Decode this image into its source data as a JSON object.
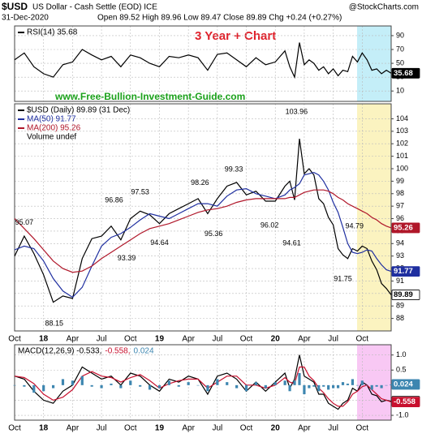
{
  "header": {
    "symbol": "$USD",
    "name": "US Dollar - Cash Settle (EOD) ICE",
    "brand": "@StockCharts.com",
    "date": "31-Dec-2020",
    "quote": "Open 89.52 High 89.96 Low 89.47 Close 89.89 Chg +0.24 (+0.27%)",
    "banner": "3 Year + Chart",
    "website": "www.Free-Bullion-Investment-Guide.com"
  },
  "chart_data": [
    {
      "type": "line",
      "x": [
        0,
        1,
        2,
        3,
        4,
        5,
        6,
        7,
        8,
        9,
        10,
        11,
        12,
        13,
        14,
        15,
        16,
        17,
        18,
        19,
        20,
        21,
        22,
        23,
        24,
        25,
        26,
        27,
        28,
        28.5,
        29,
        29.5,
        30,
        30.5,
        31,
        31.5,
        32,
        32.5,
        33,
        33.5,
        34,
        34.5,
        35,
        35.5,
        36,
        36.5,
        37,
        37.5,
        38,
        38.5,
        39
      ],
      "xlim": [
        0,
        39
      ],
      "ylim": [
        -5,
        104
      ],
      "yticks": [
        10,
        30,
        50,
        70,
        90
      ],
      "grid": true,
      "series": [
        {
          "name": "RSI(14) 35.68",
          "color": "#000000",
          "values": [
            55,
            65,
            45,
            35,
            30,
            48,
            52,
            70,
            62,
            55,
            60,
            45,
            62,
            58,
            50,
            45,
            60,
            58,
            62,
            58,
            40,
            63,
            65,
            55,
            45,
            58,
            48,
            52,
            68,
            45,
            30,
            80,
            48,
            55,
            50,
            40,
            45,
            35,
            42,
            32,
            40,
            38,
            60,
            52,
            65,
            55,
            40,
            42,
            35,
            40,
            35.68
          ]
        }
      ]
    },
    {
      "type": "line",
      "x": [
        0,
        1,
        2,
        3,
        4,
        5,
        6,
        7,
        8,
        9,
        10,
        11,
        12,
        13,
        14,
        15,
        16,
        17,
        18,
        19,
        20,
        21,
        22,
        23,
        24,
        25,
        26,
        27,
        28,
        28.5,
        29,
        29.5,
        30,
        30.5,
        31,
        31.5,
        32,
        32.5,
        33,
        33.5,
        34,
        34.5,
        35,
        35.5,
        36,
        36.5,
        37,
        37.5,
        38,
        38.5,
        39
      ],
      "xlim": [
        0,
        39
      ],
      "ylim": [
        87,
        105.2
      ],
      "yticks": [
        88,
        89,
        90,
        91,
        92,
        93,
        94,
        95,
        96,
        97,
        98,
        99,
        100,
        101,
        102,
        103,
        104
      ],
      "xticks": [
        {
          "value": 0,
          "label": "Oct"
        },
        {
          "value": 3,
          "label": "18"
        },
        {
          "value": 6,
          "label": "Apr"
        },
        {
          "value": 9,
          "label": "Jul"
        },
        {
          "value": 12,
          "label": "Oct"
        },
        {
          "value": 15,
          "label": "19"
        },
        {
          "value": 18,
          "label": "Apr"
        },
        {
          "value": 21,
          "label": "Jul"
        },
        {
          "value": 24,
          "label": "Oct"
        },
        {
          "value": 27,
          "label": "20"
        },
        {
          "value": 30,
          "label": "Apr"
        },
        {
          "value": 33,
          "label": "Jul"
        },
        {
          "value": 36,
          "label": "Oct"
        }
      ],
      "grid": true,
      "note": "Volume undef",
      "series": [
        {
          "name": "$USD (Daily) 89.89 (31 Dec)",
          "color": "#000000",
          "values": [
            93.0,
            94.6,
            93.2,
            91.5,
            89.3,
            89.8,
            89.6,
            92.8,
            94.4,
            94.6,
            95.4,
            94.3,
            96.0,
            96.6,
            96.3,
            95.6,
            96.4,
            96.8,
            97.2,
            97.6,
            96.4,
            97.6,
            98.6,
            98.9,
            97.9,
            98.2,
            97.4,
            97.4,
            98.6,
            99.0,
            97.5,
            102.4,
            99.6,
            100.0,
            99.5,
            97.6,
            97.2,
            96.1,
            95.5,
            93.6,
            93.1,
            92.8,
            93.6,
            93.4,
            93.8,
            93.6,
            92.6,
            91.9,
            90.8,
            90.4,
            89.89
          ]
        },
        {
          "name": "MA(50) 91.77",
          "color": "#1f2fa0",
          "values": [
            93.5,
            93.8,
            93.6,
            92.6,
            91.2,
            90.2,
            89.7,
            90.5,
            92.2,
            93.8,
            94.5,
            94.8,
            95.3,
            95.9,
            96.4,
            96.2,
            96.0,
            96.4,
            96.8,
            97.2,
            97.2,
            97.0,
            97.8,
            98.3,
            98.4,
            98.0,
            97.8,
            97.6,
            97.9,
            98.3,
            98.5,
            98.8,
            99.5,
            99.6,
            99.7,
            99.5,
            99.0,
            98.3,
            97.3,
            96.5,
            95.3,
            94.0,
            93.3,
            93.2,
            93.3,
            93.5,
            93.4,
            92.8,
            92.3,
            91.9,
            91.77
          ]
        },
        {
          "name": "MA(200) 95.26",
          "color": "#b0172a",
          "values": [
            96.0,
            95.2,
            94.4,
            93.5,
            92.6,
            92.0,
            91.7,
            91.8,
            92.2,
            92.8,
            93.3,
            93.8,
            94.3,
            94.8,
            95.2,
            95.4,
            95.6,
            95.9,
            96.2,
            96.5,
            96.7,
            96.8,
            97.0,
            97.3,
            97.5,
            97.6,
            97.6,
            97.6,
            97.6,
            97.7,
            97.7,
            97.9,
            98.1,
            98.2,
            98.3,
            98.3,
            98.3,
            98.2,
            98.0,
            97.7,
            97.5,
            97.2,
            97.0,
            96.8,
            96.6,
            96.4,
            96.1,
            95.9,
            95.6,
            95.4,
            95.26
          ]
        }
      ],
      "annotations": [
        {
          "x": 1.0,
          "value": 95.07
        },
        {
          "x": 4.1,
          "value": 88.15
        },
        {
          "x": 10.3,
          "value": 96.86
        },
        {
          "x": 11.6,
          "value": 93.39
        },
        {
          "x": 13.0,
          "value": 97.53
        },
        {
          "x": 15.0,
          "value": 94.64
        },
        {
          "x": 19.2,
          "value": 98.26
        },
        {
          "x": 20.6,
          "value": 95.36
        },
        {
          "x": 22.7,
          "value": 99.33
        },
        {
          "x": 26.4,
          "value": 96.02
        },
        {
          "x": 28.7,
          "value": 94.61
        },
        {
          "x": 29.2,
          "value": 103.96
        },
        {
          "x": 34.0,
          "value": 91.75
        },
        {
          "x": 35.2,
          "value": 94.79
        }
      ]
    },
    {
      "type": "line",
      "x": [
        0,
        1,
        2,
        3,
        4,
        5,
        6,
        7,
        8,
        9,
        10,
        11,
        12,
        13,
        14,
        15,
        16,
        17,
        18,
        19,
        20,
        21,
        22,
        23,
        24,
        25,
        26,
        27,
        28,
        28.5,
        29,
        29.5,
        30,
        30.5,
        31,
        31.5,
        32,
        32.5,
        33,
        33.5,
        34,
        34.5,
        35,
        35.5,
        36,
        36.5,
        37,
        37.5,
        38,
        38.5,
        39
      ],
      "xlim": [
        0,
        39
      ],
      "ylim": [
        -1.16,
        1.34
      ],
      "yticks": [
        {
          "value": -1,
          "label": "-1.0"
        },
        -0.5,
        0.5,
        {
          "value": 1,
          "label": "1.0"
        }
      ],
      "xticks": [
        {
          "value": 0,
          "label": "Oct"
        },
        {
          "value": 3,
          "label": "18"
        },
        {
          "value": 6,
          "label": "Apr"
        },
        {
          "value": 9,
          "label": "Jul"
        },
        {
          "value": 12,
          "label": "Oct"
        },
        {
          "value": 15,
          "label": "19"
        },
        {
          "value": 18,
          "label": "Apr"
        },
        {
          "value": 21,
          "label": "Jul"
        },
        {
          "value": 24,
          "label": "Oct"
        },
        {
          "value": 27,
          "label": "20"
        },
        {
          "value": 30,
          "label": "Apr"
        },
        {
          "value": 33,
          "label": "Jul"
        },
        {
          "value": 36,
          "label": "Oct"
        }
      ],
      "grid": true,
      "series": [
        {
          "name": "MACD(12,26,9) -0.533,",
          "color": "#000000",
          "values": [
            0.3,
            0.2,
            -0.2,
            -0.5,
            -0.6,
            -0.2,
            0.0,
            0.6,
            0.4,
            0.2,
            0.3,
            0.0,
            0.4,
            0.3,
            0.0,
            -0.2,
            0.2,
            0.1,
            0.3,
            0.2,
            -0.3,
            0.3,
            0.4,
            0.2,
            -0.2,
            0.1,
            -0.2,
            0.1,
            0.4,
            -0.1,
            0.2,
            1.0,
            0.3,
            0.2,
            0.1,
            -0.3,
            -0.3,
            -0.6,
            -0.7,
            -0.8,
            -0.6,
            -0.5,
            -0.1,
            -0.2,
            0.1,
            0.0,
            -0.3,
            -0.35,
            -0.55,
            -0.5,
            -0.533
          ]
        },
        {
          "name": "-0.558,",
          "color": "#c8102e",
          "values": [
            0.3,
            0.25,
            0.05,
            -0.3,
            -0.5,
            -0.4,
            -0.15,
            0.3,
            0.45,
            0.3,
            0.25,
            0.1,
            0.25,
            0.35,
            0.15,
            -0.1,
            0.05,
            0.15,
            0.2,
            0.2,
            -0.1,
            0.1,
            0.3,
            0.3,
            0.0,
            0.0,
            -0.1,
            0.0,
            0.25,
            0.1,
            0.05,
            0.6,
            0.6,
            0.3,
            0.15,
            -0.1,
            -0.25,
            -0.45,
            -0.6,
            -0.7,
            -0.7,
            -0.55,
            -0.3,
            -0.2,
            -0.05,
            0.0,
            -0.15,
            -0.3,
            -0.45,
            -0.5,
            -0.558
          ]
        },
        {
          "name": "0.024",
          "color": "#3d86b0",
          "type": "bar",
          "values": [
            0,
            -0.05,
            -0.25,
            -0.2,
            -0.1,
            0.2,
            0.15,
            0.3,
            -0.05,
            -0.1,
            0.05,
            -0.1,
            0.15,
            -0.05,
            -0.15,
            -0.1,
            0.15,
            -0.05,
            0.1,
            0,
            -0.2,
            0.2,
            0.1,
            -0.1,
            -0.2,
            0.1,
            -0.1,
            0.1,
            0.15,
            -0.2,
            0.15,
            0.4,
            -0.3,
            -0.1,
            -0.05,
            -0.2,
            -0.05,
            -0.15,
            -0.1,
            -0.1,
            0.1,
            0.05,
            0.2,
            0,
            0.15,
            0,
            -0.15,
            -0.05,
            -0.1,
            0,
            0.024
          ]
        }
      ]
    }
  ]
}
